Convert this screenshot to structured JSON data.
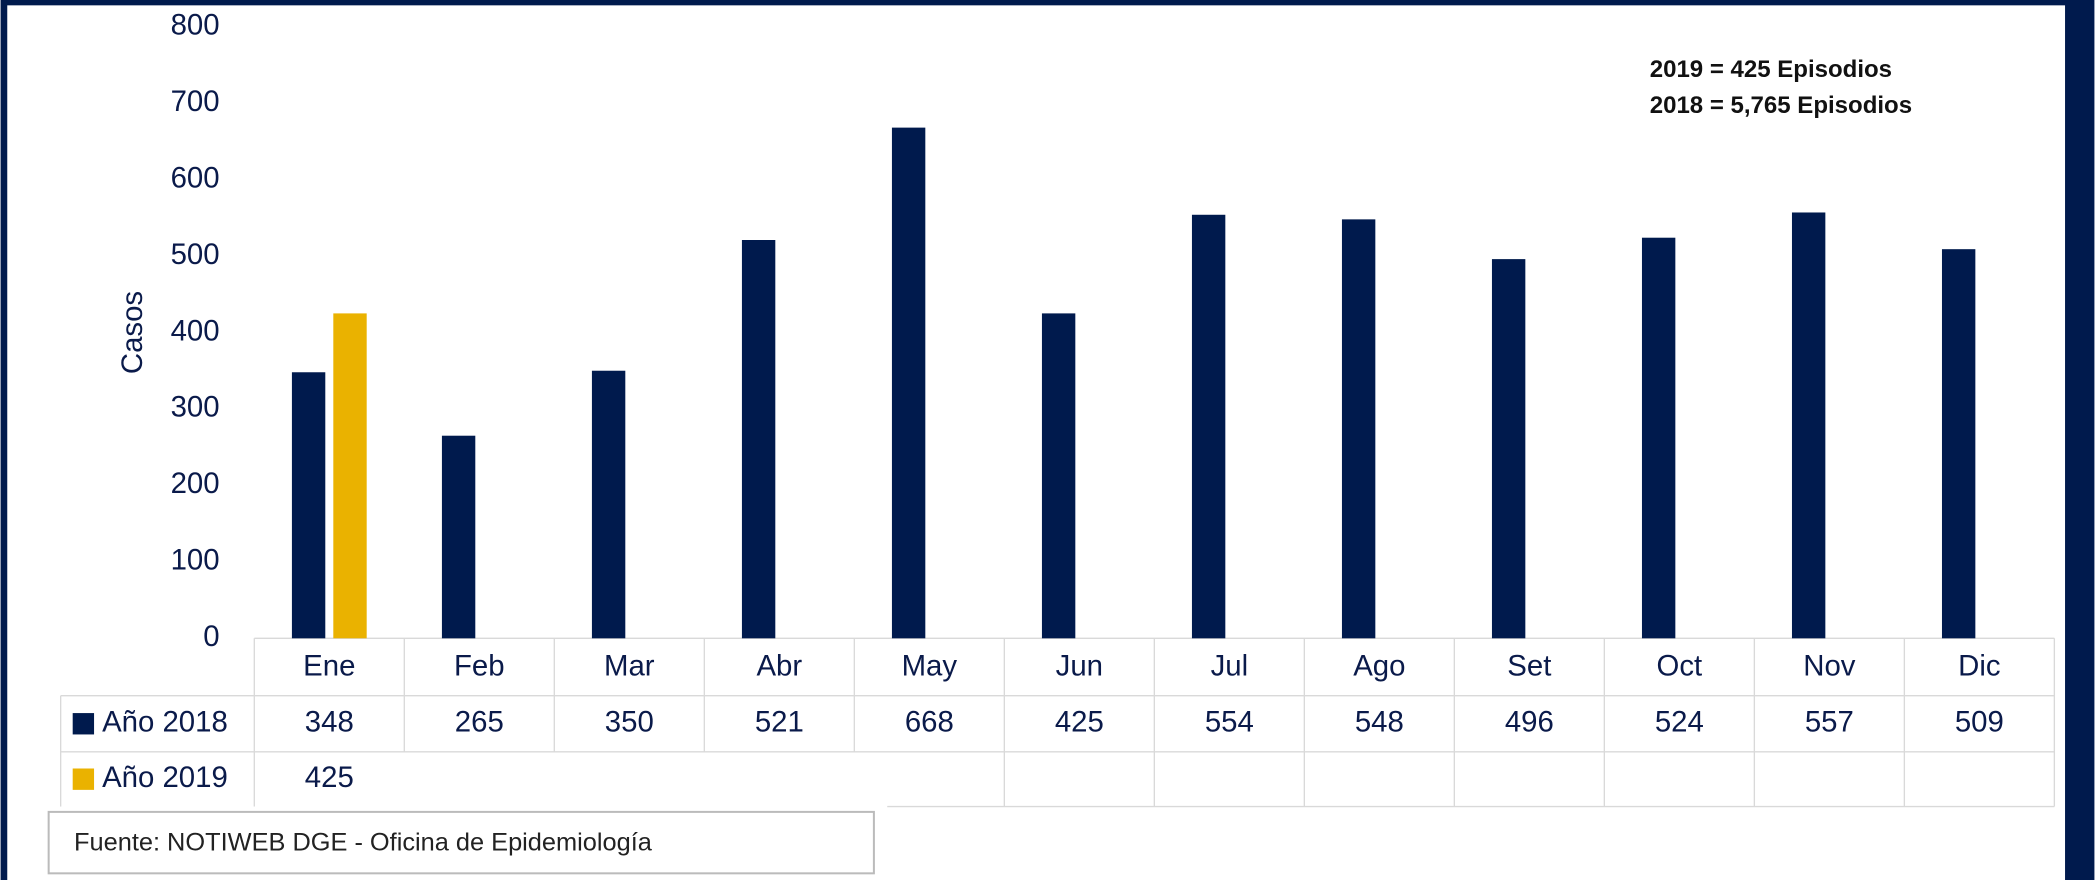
{
  "chart_data": {
    "type": "bar",
    "y_label": "Casos",
    "categories": [
      "Ene",
      "Feb",
      "Mar",
      "Abr",
      "May",
      "Jun",
      "Jul",
      "Ago",
      "Set",
      "Oct",
      "Nov",
      "Dic"
    ],
    "series": [
      {
        "name": "Año 2018",
        "color": "#001a4d",
        "values": [
          348,
          265,
          350,
          521,
          668,
          425,
          554,
          548,
          496,
          524,
          557,
          509
        ]
      },
      {
        "name": "Año 2019",
        "color": "#eab200",
        "values": [
          425,
          null,
          null,
          null,
          null,
          null,
          null,
          null,
          null,
          null,
          null,
          null
        ]
      }
    ],
    "ylim": [
      0,
      800
    ],
    "yticks": [
      0,
      100,
      200,
      300,
      400,
      500,
      600,
      700,
      800
    ],
    "annotations": [
      "2019 = 425 Episodios",
      "2018 = 5,765 Episodios"
    ],
    "source": "Fuente: NOTIWEB DGE - Oficina de Epidemiología"
  }
}
